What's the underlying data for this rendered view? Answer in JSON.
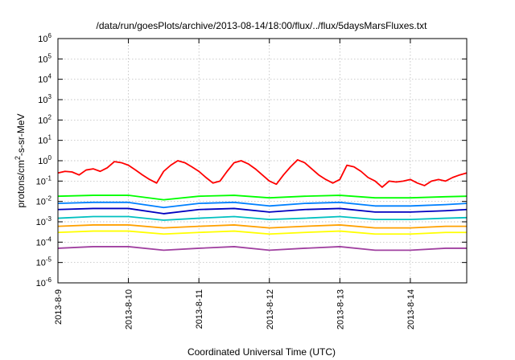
{
  "chart_data": {
    "type": "line",
    "title": "/data/run/goesPlots/archive/2013-08-14/18:00/flux/../flux/5daysMarsFluxes.txt",
    "xlabel": "Coordinated Universal Time (UTC)",
    "ylabel": "protons/cm²-s-sr-MeV",
    "y_scale": "log",
    "ylim": [
      1e-06,
      1000000.0
    ],
    "xlim_days": [
      0,
      5.8
    ],
    "grid": true,
    "legend": "none",
    "x_ticks": [
      {
        "day": 0,
        "label": "2013-8-9"
      },
      {
        "day": 1,
        "label": "2013-8-10"
      },
      {
        "day": 2,
        "label": "2013-8-11"
      },
      {
        "day": 3,
        "label": "2013-8-12"
      },
      {
        "day": 4,
        "label": "2013-8-13"
      },
      {
        "day": 5,
        "label": "2013-8-14"
      }
    ],
    "y_ticks": [
      {
        "base": "10",
        "exp": "-6",
        "value": 1e-06
      },
      {
        "base": "10",
        "exp": "-5",
        "value": 1e-05
      },
      {
        "base": "10",
        "exp": "-4",
        "value": 0.0001
      },
      {
        "base": "10",
        "exp": "-3",
        "value": 0.001
      },
      {
        "base": "10",
        "exp": "-2",
        "value": 0.01
      },
      {
        "base": "10",
        "exp": "-1",
        "value": 0.1
      },
      {
        "base": "10",
        "exp": "0",
        "value": 1
      },
      {
        "base": "10",
        "exp": "1",
        "value": 10
      },
      {
        "base": "10",
        "exp": "2",
        "value": 100
      },
      {
        "base": "10",
        "exp": "3",
        "value": 1000
      },
      {
        "base": "10",
        "exp": "4",
        "value": 10000
      },
      {
        "base": "10",
        "exp": "5",
        "value": 100000
      },
      {
        "base": "10",
        "exp": "6",
        "value": 1000000
      }
    ],
    "series": [
      {
        "color": "#ff0000",
        "x": [
          0,
          0.1,
          0.2,
          0.3,
          0.4,
          0.5,
          0.6,
          0.7,
          0.8,
          0.9,
          1.0,
          1.1,
          1.2,
          1.3,
          1.4,
          1.5,
          1.6,
          1.7,
          1.8,
          1.9,
          2.0,
          2.1,
          2.2,
          2.3,
          2.4,
          2.5,
          2.6,
          2.7,
          2.8,
          2.9,
          3.0,
          3.1,
          3.2,
          3.3,
          3.4,
          3.5,
          3.6,
          3.7,
          3.8,
          3.9,
          4.0,
          4.1,
          4.2,
          4.3,
          4.4,
          4.5,
          4.6,
          4.7,
          4.8,
          4.9,
          5.0,
          5.1,
          5.2,
          5.3,
          5.4,
          5.5,
          5.6,
          5.7,
          5.8
        ],
        "y": [
          0.25,
          0.3,
          0.28,
          0.2,
          0.35,
          0.4,
          0.3,
          0.45,
          0.9,
          0.8,
          0.6,
          0.35,
          0.2,
          0.12,
          0.08,
          0.3,
          0.6,
          1.0,
          0.8,
          0.5,
          0.3,
          0.15,
          0.08,
          0.1,
          0.3,
          0.8,
          1.0,
          0.7,
          0.4,
          0.2,
          0.1,
          0.07,
          0.2,
          0.5,
          1.1,
          0.8,
          0.4,
          0.2,
          0.12,
          0.08,
          0.12,
          0.6,
          0.5,
          0.3,
          0.15,
          0.1,
          0.05,
          0.1,
          0.09,
          0.1,
          0.12,
          0.08,
          0.06,
          0.1,
          0.12,
          0.1,
          0.15,
          0.2,
          0.25
        ]
      },
      {
        "color": "#00ff00",
        "x": [
          0,
          0.5,
          1.0,
          1.5,
          2.0,
          2.5,
          3.0,
          3.5,
          4.0,
          4.5,
          5.0,
          5.5,
          5.8
        ],
        "y": [
          0.018,
          0.02,
          0.02,
          0.012,
          0.018,
          0.02,
          0.015,
          0.018,
          0.02,
          0.015,
          0.015,
          0.017,
          0.018
        ]
      },
      {
        "color": "#0080ff",
        "x": [
          0,
          0.5,
          1.0,
          1.5,
          2.0,
          2.5,
          3.0,
          3.5,
          4.0,
          4.5,
          5.0,
          5.5,
          5.8
        ],
        "y": [
          0.008,
          0.009,
          0.009,
          0.005,
          0.008,
          0.009,
          0.006,
          0.008,
          0.009,
          0.006,
          0.006,
          0.007,
          0.008
        ]
      },
      {
        "color": "#0000c0",
        "x": [
          0,
          0.5,
          1.0,
          1.5,
          2.0,
          2.5,
          3.0,
          3.5,
          4.0,
          4.5,
          5.0,
          5.5,
          5.8
        ],
        "y": [
          0.004,
          0.0045,
          0.0045,
          0.0025,
          0.004,
          0.0045,
          0.003,
          0.004,
          0.0045,
          0.003,
          0.003,
          0.0035,
          0.004
        ]
      },
      {
        "color": "#00c0c0",
        "x": [
          0,
          0.5,
          1.0,
          1.5,
          2.0,
          2.5,
          3.0,
          3.5,
          4.0,
          4.5,
          5.0,
          5.5,
          5.8
        ],
        "y": [
          0.0015,
          0.0018,
          0.0018,
          0.0012,
          0.0015,
          0.0018,
          0.0013,
          0.0015,
          0.0018,
          0.0013,
          0.0013,
          0.0015,
          0.0016
        ]
      },
      {
        "color": "#ffa000",
        "x": [
          0,
          0.5,
          1.0,
          1.5,
          2.0,
          2.5,
          3.0,
          3.5,
          4.0,
          4.5,
          5.0,
          5.5,
          5.8
        ],
        "y": [
          0.0006,
          0.0007,
          0.0007,
          0.0005,
          0.0006,
          0.0007,
          0.0005,
          0.0006,
          0.0007,
          0.0005,
          0.0005,
          0.0006,
          0.0006
        ]
      },
      {
        "color": "#ffff00",
        "x": [
          0,
          0.5,
          1.0,
          1.5,
          2.0,
          2.5,
          3.0,
          3.5,
          4.0,
          4.5,
          5.0,
          5.5,
          5.8
        ],
        "y": [
          0.0003,
          0.00035,
          0.00035,
          0.00025,
          0.0003,
          0.00035,
          0.00025,
          0.0003,
          0.00035,
          0.00025,
          0.00025,
          0.0003,
          0.0003
        ]
      },
      {
        "color": "#a040a0",
        "x": [
          0,
          0.5,
          1.0,
          1.5,
          2.0,
          2.5,
          3.0,
          3.5,
          4.0,
          4.5,
          5.0,
          5.5,
          5.8
        ],
        "y": [
          5e-05,
          6e-05,
          6e-05,
          4e-05,
          5e-05,
          6e-05,
          4e-05,
          5e-05,
          6e-05,
          4e-05,
          4e-05,
          5e-05,
          5e-05
        ]
      }
    ]
  }
}
